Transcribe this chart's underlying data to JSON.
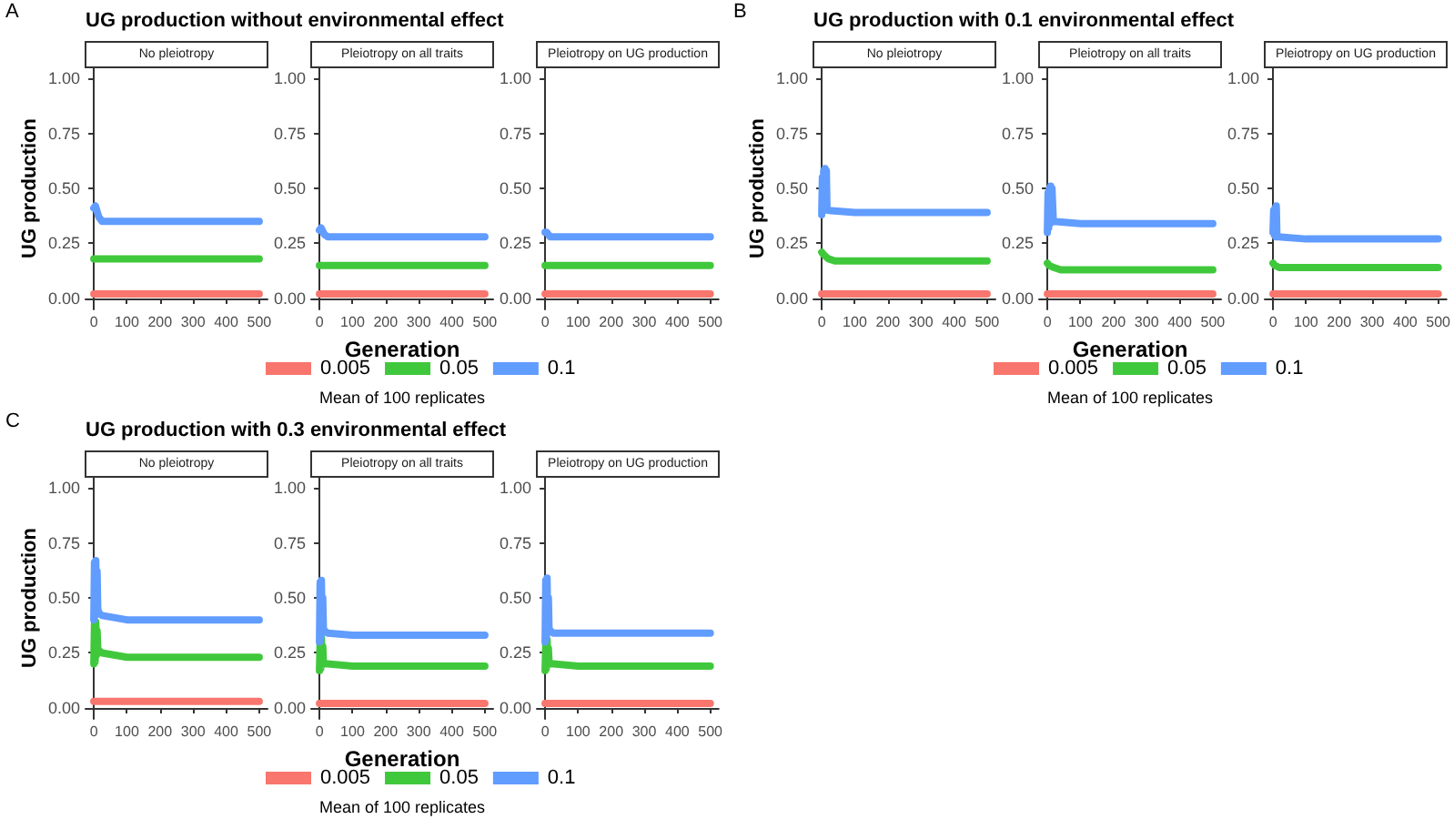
{
  "chart_data": [
    {
      "type": "line",
      "title": "UG production without environmental effect",
      "subtitle": "No pleiotropy",
      "ylabel": "UG production",
      "annotations": [
        "A"
      ],
      "legend": false,
      "grid": false,
      "line_style": "solid",
      "xlim": [
        -25,
        525
      ],
      "ylim": [
        -0.05,
        1.05
      ],
      "xticks": [
        0,
        100,
        200,
        300,
        400,
        500
      ],
      "yticks": [
        {
          "value": 0,
          "label": "0.00"
        },
        {
          "value": 0.25,
          "label": "0.25"
        },
        {
          "value": 0.5,
          "label": "0.50"
        },
        {
          "value": 0.75,
          "label": "0.75"
        },
        {
          "value": 1,
          "label": "1.00"
        }
      ],
      "series": [
        {
          "color": "#f8766d",
          "x": [
            0,
            100,
            200,
            300,
            400,
            500
          ],
          "values": [
            0.02,
            0.02,
            0.02,
            0.02,
            0.02,
            0.02
          ]
        },
        {
          "color": "#40c83c",
          "x": [
            0,
            100,
            200,
            300,
            400,
            500
          ],
          "values": [
            0.18,
            0.18,
            0.18,
            0.18,
            0.18,
            0.18
          ]
        },
        {
          "color": "#619cff",
          "x": [
            0,
            5,
            15,
            25,
            100,
            200,
            300,
            400,
            500
          ],
          "values": [
            0.41,
            0.42,
            0.37,
            0.35,
            0.35,
            0.35,
            0.35,
            0.35,
            0.35
          ]
        }
      ]
    },
    {
      "type": "line",
      "subtitle": "Pleiotropy on all traits",
      "xlabel": "Generation",
      "legend": "bottom",
      "legend_title": "Mean of 100 replicates",
      "grid": false,
      "line_style": "solid",
      "xlim": [
        -25,
        525
      ],
      "ylim": [
        -0.05,
        1.05
      ],
      "xticks": [
        0,
        100,
        200,
        300,
        400,
        500
      ],
      "yticks": [
        {
          "value": 0,
          "label": "0.00"
        },
        {
          "value": 0.25,
          "label": "0.25"
        },
        {
          "value": 0.5,
          "label": "0.50"
        },
        {
          "value": 0.75,
          "label": "0.75"
        },
        {
          "value": 1,
          "label": "1.00"
        }
      ],
      "series": [
        {
          "name": "0.005",
          "color": "#f8766d",
          "x": [
            0,
            100,
            200,
            300,
            400,
            500
          ],
          "values": [
            0.02,
            0.02,
            0.02,
            0.02,
            0.02,
            0.02
          ]
        },
        {
          "name": "0.05",
          "color": "#40c83c",
          "x": [
            0,
            100,
            200,
            300,
            400,
            500
          ],
          "values": [
            0.15,
            0.15,
            0.15,
            0.15,
            0.15,
            0.15
          ]
        },
        {
          "name": "0.1",
          "color": "#619cff",
          "x": [
            0,
            5,
            15,
            25,
            100,
            200,
            300,
            400,
            500
          ],
          "values": [
            0.31,
            0.32,
            0.29,
            0.28,
            0.28,
            0.28,
            0.28,
            0.28,
            0.28
          ]
        }
      ]
    },
    {
      "type": "line",
      "subtitle": "Pleiotropy on UG production",
      "legend": false,
      "grid": false,
      "line_style": "solid",
      "xlim": [
        -25,
        525
      ],
      "ylim": [
        -0.05,
        1.05
      ],
      "xticks": [
        0,
        100,
        200,
        300,
        400,
        500
      ],
      "yticks": [
        {
          "value": 0,
          "label": "0.00"
        },
        {
          "value": 0.25,
          "label": "0.25"
        },
        {
          "value": 0.5,
          "label": "0.50"
        },
        {
          "value": 0.75,
          "label": "0.75"
        },
        {
          "value": 1,
          "label": "1.00"
        }
      ],
      "series": [
        {
          "color": "#f8766d",
          "x": [
            0,
            100,
            200,
            300,
            400,
            500
          ],
          "values": [
            0.02,
            0.02,
            0.02,
            0.02,
            0.02,
            0.02
          ]
        },
        {
          "color": "#40c83c",
          "x": [
            0,
            100,
            200,
            300,
            400,
            500
          ],
          "values": [
            0.15,
            0.15,
            0.15,
            0.15,
            0.15,
            0.15
          ]
        },
        {
          "color": "#619cff",
          "x": [
            0,
            5,
            15,
            100,
            200,
            300,
            400,
            500
          ],
          "values": [
            0.3,
            0.3,
            0.28,
            0.28,
            0.28,
            0.28,
            0.28,
            0.28
          ]
        }
      ]
    },
    {
      "type": "line",
      "title": "UG production with 0.1 environmental effect",
      "subtitle": "No pleiotropy",
      "ylabel": "UG production",
      "annotations": [
        "B"
      ],
      "legend": false,
      "grid": false,
      "line_style": "solid",
      "xlim": [
        -25,
        525
      ],
      "ylim": [
        -0.05,
        1.05
      ],
      "xticks": [
        0,
        100,
        200,
        300,
        400,
        500
      ],
      "yticks": [
        {
          "value": 0,
          "label": "0.00"
        },
        {
          "value": 0.25,
          "label": "0.25"
        },
        {
          "value": 0.5,
          "label": "0.50"
        },
        {
          "value": 0.75,
          "label": "0.75"
        },
        {
          "value": 1,
          "label": "1.00"
        }
      ],
      "series": [
        {
          "color": "#f8766d",
          "x": [
            0,
            100,
            200,
            300,
            400,
            500
          ],
          "values": [
            0.02,
            0.02,
            0.02,
            0.02,
            0.02,
            0.02
          ]
        },
        {
          "color": "#40c83c",
          "x": [
            0,
            5,
            20,
            40,
            100,
            200,
            300,
            400,
            500
          ],
          "values": [
            0.21,
            0.2,
            0.18,
            0.17,
            0.17,
            0.17,
            0.17,
            0.17,
            0.17
          ]
        },
        {
          "color": "#619cff",
          "x": [
            0,
            2,
            4,
            6,
            8,
            10,
            12,
            14,
            16,
            20,
            100,
            200,
            300,
            400,
            500
          ],
          "values": [
            0.38,
            0.55,
            0.4,
            0.58,
            0.4,
            0.59,
            0.42,
            0.58,
            0.41,
            0.4,
            0.39,
            0.39,
            0.39,
            0.39,
            0.39
          ]
        }
      ]
    },
    {
      "type": "line",
      "subtitle": "Pleiotropy on all traits",
      "xlabel": "Generation",
      "legend": "bottom",
      "legend_title": "Mean of 100 replicates",
      "grid": false,
      "line_style": "solid",
      "xlim": [
        -25,
        525
      ],
      "ylim": [
        -0.05,
        1.05
      ],
      "xticks": [
        0,
        100,
        200,
        300,
        400,
        500
      ],
      "yticks": [
        {
          "value": 0,
          "label": "0.00"
        },
        {
          "value": 0.25,
          "label": "0.25"
        },
        {
          "value": 0.5,
          "label": "0.50"
        },
        {
          "value": 0.75,
          "label": "0.75"
        },
        {
          "value": 1,
          "label": "1.00"
        }
      ],
      "series": [
        {
          "name": "0.005",
          "color": "#f8766d",
          "x": [
            0,
            100,
            200,
            300,
            400,
            500
          ],
          "values": [
            0.02,
            0.02,
            0.02,
            0.02,
            0.02,
            0.02
          ]
        },
        {
          "name": "0.05",
          "color": "#40c83c",
          "x": [
            0,
            5,
            20,
            40,
            100,
            200,
            300,
            400,
            500
          ],
          "values": [
            0.16,
            0.15,
            0.14,
            0.13,
            0.13,
            0.13,
            0.13,
            0.13,
            0.13
          ]
        },
        {
          "name": "0.1",
          "color": "#619cff",
          "x": [
            0,
            2,
            4,
            6,
            8,
            10,
            12,
            14,
            18,
            100,
            200,
            300,
            400,
            500
          ],
          "values": [
            0.3,
            0.48,
            0.32,
            0.5,
            0.34,
            0.51,
            0.35,
            0.5,
            0.35,
            0.34,
            0.34,
            0.34,
            0.34,
            0.34
          ]
        }
      ]
    },
    {
      "type": "line",
      "subtitle": "Pleiotropy on UG production",
      "legend": false,
      "grid": false,
      "line_style": "solid",
      "xlim": [
        -25,
        525
      ],
      "ylim": [
        -0.05,
        1.05
      ],
      "xticks": [
        0,
        100,
        200,
        300,
        400,
        500
      ],
      "yticks": [
        {
          "value": 0,
          "label": "0.00"
        },
        {
          "value": 0.25,
          "label": "0.25"
        },
        {
          "value": 0.5,
          "label": "0.50"
        },
        {
          "value": 0.75,
          "label": "0.75"
        },
        {
          "value": 1,
          "label": "1.00"
        }
      ],
      "series": [
        {
          "color": "#f8766d",
          "x": [
            0,
            100,
            200,
            300,
            400,
            500
          ],
          "values": [
            0.02,
            0.02,
            0.02,
            0.02,
            0.02,
            0.02
          ]
        },
        {
          "color": "#40c83c",
          "x": [
            0,
            5,
            20,
            40,
            100,
            200,
            300,
            400,
            500
          ],
          "values": [
            0.16,
            0.15,
            0.14,
            0.14,
            0.14,
            0.14,
            0.14,
            0.14,
            0.14
          ]
        },
        {
          "color": "#619cff",
          "x": [
            0,
            2,
            4,
            6,
            8,
            10,
            12,
            16,
            100,
            200,
            300,
            400,
            500
          ],
          "values": [
            0.3,
            0.4,
            0.29,
            0.41,
            0.28,
            0.42,
            0.28,
            0.28,
            0.27,
            0.27,
            0.27,
            0.27,
            0.27
          ]
        }
      ]
    },
    {
      "type": "line",
      "title": "UG production with 0.3 environmental effect",
      "subtitle": "No pleiotropy",
      "ylabel": "UG production",
      "annotations": [
        "C"
      ],
      "legend": false,
      "grid": false,
      "line_style": "solid",
      "xlim": [
        -25,
        525
      ],
      "ylim": [
        -0.05,
        1.05
      ],
      "xticks": [
        0,
        100,
        200,
        300,
        400,
        500
      ],
      "yticks": [
        {
          "value": 0,
          "label": "0.00"
        },
        {
          "value": 0.25,
          "label": "0.25"
        },
        {
          "value": 0.5,
          "label": "0.50"
        },
        {
          "value": 0.75,
          "label": "0.75"
        },
        {
          "value": 1,
          "label": "1.00"
        }
      ],
      "series": [
        {
          "color": "#f8766d",
          "x": [
            0,
            100,
            200,
            300,
            400,
            500
          ],
          "values": [
            0.03,
            0.03,
            0.03,
            0.03,
            0.03,
            0.03
          ]
        },
        {
          "color": "#40c83c",
          "x": [
            0,
            2,
            4,
            6,
            8,
            10,
            12,
            16,
            25,
            100,
            200,
            300,
            400,
            500
          ],
          "values": [
            0.2,
            0.38,
            0.21,
            0.39,
            0.24,
            0.35,
            0.27,
            0.26,
            0.25,
            0.23,
            0.23,
            0.23,
            0.23,
            0.23
          ]
        },
        {
          "color": "#619cff",
          "x": [
            0,
            2,
            4,
            6,
            8,
            10,
            12,
            16,
            25,
            100,
            200,
            300,
            400,
            500
          ],
          "values": [
            0.4,
            0.66,
            0.42,
            0.67,
            0.44,
            0.62,
            0.45,
            0.43,
            0.42,
            0.4,
            0.4,
            0.4,
            0.4,
            0.4
          ]
        }
      ]
    },
    {
      "type": "line",
      "subtitle": "Pleiotropy on all traits",
      "xlabel": "Generation",
      "legend": "bottom",
      "legend_title": "Mean of 100 replicates",
      "grid": false,
      "line_style": "solid",
      "xlim": [
        -25,
        525
      ],
      "ylim": [
        -0.05,
        1.05
      ],
      "xticks": [
        0,
        100,
        200,
        300,
        400,
        500
      ],
      "yticks": [
        {
          "value": 0,
          "label": "0.00"
        },
        {
          "value": 0.25,
          "label": "0.25"
        },
        {
          "value": 0.5,
          "label": "0.50"
        },
        {
          "value": 0.75,
          "label": "0.75"
        },
        {
          "value": 1,
          "label": "1.00"
        }
      ],
      "series": [
        {
          "name": "0.005",
          "color": "#f8766d",
          "x": [
            0,
            100,
            200,
            300,
            400,
            500
          ],
          "values": [
            0.02,
            0.02,
            0.02,
            0.02,
            0.02,
            0.02
          ]
        },
        {
          "name": "0.05",
          "color": "#40c83c",
          "x": [
            0,
            2,
            4,
            6,
            8,
            10,
            12,
            16,
            25,
            100,
            200,
            300,
            400,
            500
          ],
          "values": [
            0.17,
            0.3,
            0.18,
            0.32,
            0.2,
            0.28,
            0.21,
            0.2,
            0.2,
            0.19,
            0.19,
            0.19,
            0.19,
            0.19
          ]
        },
        {
          "name": "0.1",
          "color": "#619cff",
          "x": [
            0,
            2,
            4,
            6,
            8,
            10,
            12,
            16,
            25,
            100,
            200,
            300,
            400,
            500
          ],
          "values": [
            0.3,
            0.57,
            0.32,
            0.58,
            0.36,
            0.5,
            0.36,
            0.35,
            0.34,
            0.33,
            0.33,
            0.33,
            0.33,
            0.33
          ]
        }
      ]
    },
    {
      "type": "line",
      "subtitle": "Pleiotropy on UG production",
      "legend": false,
      "grid": false,
      "line_style": "solid",
      "xlim": [
        -25,
        525
      ],
      "ylim": [
        -0.05,
        1.05
      ],
      "xticks": [
        0,
        100,
        200,
        300,
        400,
        500
      ],
      "yticks": [
        {
          "value": 0,
          "label": "0.00"
        },
        {
          "value": 0.25,
          "label": "0.25"
        },
        {
          "value": 0.5,
          "label": "0.50"
        },
        {
          "value": 0.75,
          "label": "0.75"
        },
        {
          "value": 1,
          "label": "1.00"
        }
      ],
      "series": [
        {
          "color": "#f8766d",
          "x": [
            0,
            100,
            200,
            300,
            400,
            500
          ],
          "values": [
            0.02,
            0.02,
            0.02,
            0.02,
            0.02,
            0.02
          ]
        },
        {
          "color": "#40c83c",
          "x": [
            0,
            2,
            4,
            6,
            8,
            10,
            12,
            16,
            25,
            100,
            200,
            300,
            400,
            500
          ],
          "values": [
            0.17,
            0.29,
            0.18,
            0.31,
            0.2,
            0.27,
            0.21,
            0.2,
            0.2,
            0.19,
            0.19,
            0.19,
            0.19,
            0.19
          ]
        },
        {
          "color": "#619cff",
          "x": [
            0,
            2,
            4,
            6,
            8,
            10,
            12,
            16,
            25,
            100,
            200,
            300,
            400,
            500
          ],
          "values": [
            0.3,
            0.58,
            0.32,
            0.59,
            0.36,
            0.5,
            0.36,
            0.35,
            0.34,
            0.34,
            0.34,
            0.34,
            0.34,
            0.34
          ]
        }
      ]
    }
  ]
}
